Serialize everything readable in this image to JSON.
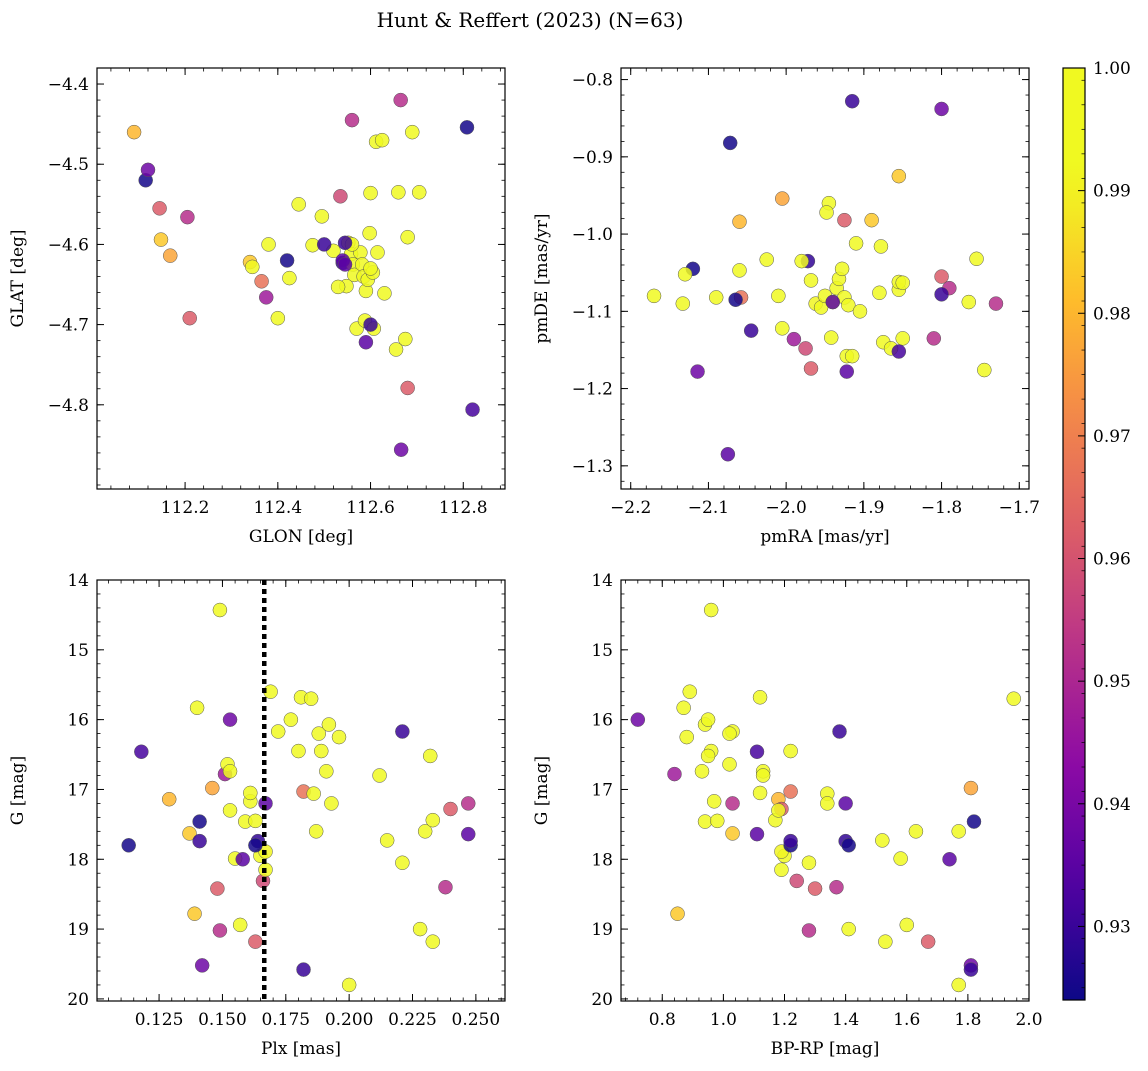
{
  "figure": {
    "title": "Hunt & Reffert (2023) (N=63)"
  },
  "colorbar": {
    "range": [
      0.924,
      1.0
    ],
    "ticks": [
      0.93,
      0.94,
      0.95,
      0.96,
      0.97,
      0.98,
      0.99,
      1.0
    ],
    "tick_labels": [
      "0.93",
      "0.94",
      "0.95",
      "0.96",
      "0.97",
      "0.98",
      "0.99",
      "1.00"
    ],
    "colormap": "plasma"
  },
  "stars": [
    {
      "glon": 112.09,
      "glat": -4.46,
      "pmra": -2.06,
      "pmde": -0.984,
      "plx": 0.129,
      "g": 17.14,
      "bprp": 1.18,
      "p": 0.98
    },
    {
      "glon": 112.115,
      "glat": -4.52,
      "pmra": -2.12,
      "pmde": -1.045,
      "plx": 0.141,
      "g": 17.46,
      "bprp": 1.82,
      "p": 0.925
    },
    {
      "glon": 112.12,
      "glat": -4.507,
      "pmra": -2.114,
      "pmde": -1.178,
      "plx": 0.142,
      "g": 19.52,
      "bprp": 1.81,
      "p": 0.938
    },
    {
      "glon": 112.145,
      "glat": -4.555,
      "pmra": -1.925,
      "pmde": -0.982,
      "plx": 0.148,
      "g": 18.42,
      "bprp": 1.3,
      "p": 0.962
    },
    {
      "glon": 112.148,
      "glat": -4.594,
      "pmra": -1.89,
      "pmde": -0.982,
      "plx": 0.137,
      "g": 17.63,
      "bprp": 1.03,
      "p": 0.983
    },
    {
      "glon": 112.168,
      "glat": -4.614,
      "pmra": -2.005,
      "pmde": -0.954,
      "plx": 0.146,
      "g": 16.98,
      "bprp": 1.81,
      "p": 0.977
    },
    {
      "glon": 112.205,
      "glat": -4.566,
      "pmra": -1.73,
      "pmde": -1.09,
      "plx": 0.149,
      "g": 19.02,
      "bprp": 1.28,
      "p": 0.952
    },
    {
      "glon": 112.21,
      "glat": -4.692,
      "pmra": -1.968,
      "pmde": -1.174,
      "plx": 0.163,
      "g": 19.18,
      "bprp": 1.67,
      "p": 0.962
    },
    {
      "glon": 112.34,
      "glat": -4.622,
      "pmra": -1.855,
      "pmde": -0.925,
      "plx": 0.139,
      "g": 18.78,
      "bprp": 0.85,
      "p": 0.983
    },
    {
      "glon": 112.345,
      "glat": -4.628,
      "pmra": -2.17,
      "pmde": -1.08,
      "plx": 0.149,
      "g": 14.43,
      "bprp": 0.96,
      "p": 1.0
    },
    {
      "glon": 112.365,
      "glat": -4.646,
      "pmra": -2.058,
      "pmde": -1.082,
      "plx": 0.182,
      "g": 17.03,
      "bprp": 1.22,
      "p": 0.967
    },
    {
      "glon": 112.375,
      "glat": -4.666,
      "pmra": -1.99,
      "pmde": -1.136,
      "plx": 0.151,
      "g": 16.78,
      "bprp": 0.84,
      "p": 0.947
    },
    {
      "glon": 112.38,
      "glat": -4.6,
      "pmra": -2.133,
      "pmde": -1.09,
      "plx": 0.152,
      "g": 16.64,
      "bprp": 1.02,
      "p": 0.997
    },
    {
      "glon": 112.4,
      "glat": -4.692,
      "pmra": -2.13,
      "pmde": -1.052,
      "plx": 0.153,
      "g": 16.74,
      "bprp": 0.93,
      "p": 0.994
    },
    {
      "glon": 112.425,
      "glat": -4.642,
      "pmra": -2.09,
      "pmde": -1.082,
      "plx": 0.155,
      "g": 17.99,
      "bprp": 1.58,
      "p": 0.995
    },
    {
      "glon": 112.445,
      "glat": -4.55,
      "pmra": -2.06,
      "pmde": -1.047,
      "plx": 0.157,
      "g": 18.94,
      "bprp": 1.6,
      "p": 0.996
    },
    {
      "glon": 112.475,
      "glat": -4.601,
      "pmra": -2.025,
      "pmde": -1.033,
      "plx": 0.159,
      "g": 17.46,
      "bprp": 0.94,
      "p": 1.0
    },
    {
      "glon": 112.495,
      "glat": -4.565,
      "pmra": -2.01,
      "pmde": -1.08,
      "plx": 0.161,
      "g": 17.17,
      "bprp": 0.97,
      "p": 1.0
    },
    {
      "glon": 112.52,
      "glat": -4.608,
      "pmra": -2.005,
      "pmde": -1.122,
      "plx": 0.163,
      "g": 17.45,
      "bprp": 0.98,
      "p": 0.998
    },
    {
      "glon": 112.535,
      "glat": -4.54,
      "pmra": -1.975,
      "pmde": -1.148,
      "plx": 0.166,
      "g": 18.31,
      "bprp": 1.24,
      "p": 0.958
    },
    {
      "glon": 112.54,
      "glat": -4.623,
      "pmra": -1.972,
      "pmde": -1.035,
      "plx": 0.164,
      "g": 17.74,
      "bprp": 1.4,
      "p": 0.929
    },
    {
      "glon": 112.548,
      "glat": -4.652,
      "pmra": -1.968,
      "pmde": -1.06,
      "plx": 0.165,
      "g": 17.95,
      "bprp": 1.2,
      "p": 1.0
    },
    {
      "glon": 112.552,
      "glat": -4.598,
      "pmra": -1.962,
      "pmde": -1.09,
      "plx": 0.167,
      "g": 17.89,
      "bprp": 1.19,
      "p": 0.99
    },
    {
      "glon": 112.558,
      "glat": -4.612,
      "pmra": -1.955,
      "pmde": -1.095,
      "plx": 0.167,
      "g": 18.15,
      "bprp": 1.19,
      "p": 0.997
    },
    {
      "glon": 112.562,
      "glat": -4.625,
      "pmra": -1.95,
      "pmde": -1.08,
      "plx": 0.169,
      "g": 15.6,
      "bprp": 0.89,
      "p": 1.0
    },
    {
      "glon": 112.565,
      "glat": -4.638,
      "pmra": -1.945,
      "pmde": -0.96,
      "plx": 0.172,
      "g": 16.17,
      "bprp": 1.03,
      "p": 1.0
    },
    {
      "glon": 112.57,
      "glat": -4.705,
      "pmra": -1.948,
      "pmde": -0.972,
      "plx": 0.18,
      "g": 16.45,
      "bprp": 1.22,
      "p": 0.992
    },
    {
      "glon": 112.578,
      "glat": -4.61,
      "pmra": -1.942,
      "pmde": -1.134,
      "plx": 0.181,
      "g": 15.68,
      "bprp": 1.12,
      "p": 0.998
    },
    {
      "glon": 112.582,
      "glat": -4.625,
      "pmra": -1.94,
      "pmde": -1.088,
      "plx": 0.185,
      "g": 15.7,
      "bprp": 1.95,
      "p": 1.0
    },
    {
      "glon": 112.585,
      "glat": -4.64,
      "pmra": -1.935,
      "pmde": -1.07,
      "plx": 0.186,
      "g": 17.06,
      "bprp": 1.34,
      "p": 0.997
    },
    {
      "glon": 112.588,
      "glat": -4.695,
      "pmra": -1.932,
      "pmde": -1.058,
      "plx": 0.187,
      "g": 17.6,
      "bprp": 1.63,
      "p": 0.997
    },
    {
      "glon": 112.59,
      "glat": -4.658,
      "pmra": -1.928,
      "pmde": -1.045,
      "plx": 0.188,
      "g": 16.2,
      "bprp": 1.02,
      "p": 1.0
    },
    {
      "glon": 112.594,
      "glat": -4.644,
      "pmra": -1.925,
      "pmde": -1.082,
      "plx": 0.189,
      "g": 16.45,
      "bprp": 0.96,
      "p": 0.999
    },
    {
      "glon": 112.598,
      "glat": -4.586,
      "pmra": -1.922,
      "pmde": -1.158,
      "plx": 0.191,
      "g": 16.74,
      "bprp": 1.13,
      "p": 0.998
    },
    {
      "glon": 112.6,
      "glat": -4.536,
      "pmra": -1.92,
      "pmde": -1.092,
      "plx": 0.192,
      "g": 16.07,
      "bprp": 0.94,
      "p": 1.0
    },
    {
      "glon": 112.605,
      "glat": -4.635,
      "pmra": -1.915,
      "pmde": -1.158,
      "plx": 0.193,
      "g": 17.2,
      "bprp": 1.34,
      "p": 0.997
    },
    {
      "glon": 112.607,
      "glat": -4.705,
      "pmra": -1.91,
      "pmde": -1.012,
      "plx": 0.196,
      "g": 16.25,
      "bprp": 0.88,
      "p": 1.0
    },
    {
      "glon": 112.612,
      "glat": -4.472,
      "pmra": -1.905,
      "pmde": -1.1,
      "plx": 0.2,
      "g": 19.8,
      "bprp": 1.77,
      "p": 0.999
    },
    {
      "glon": 112.615,
      "glat": -4.61,
      "pmra": -1.88,
      "pmde": -1.076,
      "plx": 0.212,
      "g": 16.8,
      "bprp": 1.13,
      "p": 1.0
    },
    {
      "glon": 112.625,
      "glat": -4.47,
      "pmra": -1.878,
      "pmde": -1.016,
      "plx": 0.215,
      "g": 17.73,
      "bprp": 1.52,
      "p": 1.0
    },
    {
      "glon": 112.63,
      "glat": -4.661,
      "pmra": -1.875,
      "pmde": -1.14,
      "plx": 0.221,
      "g": 18.05,
      "bprp": 1.28,
      "p": 0.999
    },
    {
      "glon": 112.655,
      "glat": -4.731,
      "pmra": -1.865,
      "pmde": -1.148,
      "plx": 0.228,
      "g": 19.0,
      "bprp": 1.41,
      "p": 0.998
    },
    {
      "glon": 112.66,
      "glat": -4.535,
      "pmra": -1.855,
      "pmde": -1.072,
      "plx": 0.23,
      "g": 17.6,
      "bprp": 1.77,
      "p": 1.0
    },
    {
      "glon": 112.675,
      "glat": -4.718,
      "pmra": -1.855,
      "pmde": -1.062,
      "plx": 0.232,
      "g": 16.52,
      "bprp": 0.95,
      "p": 1.0
    },
    {
      "glon": 112.68,
      "glat": -4.591,
      "pmra": -1.85,
      "pmde": -1.135,
      "plx": 0.233,
      "g": 17.44,
      "bprp": 1.17,
      "p": 0.995
    },
    {
      "glon": 112.705,
      "glat": -4.535,
      "pmra": -1.85,
      "pmde": -1.063,
      "plx": 0.233,
      "g": 19.18,
      "bprp": 1.53,
      "p": 1.0
    },
    {
      "glon": 112.665,
      "glat": -4.42,
      "pmra": -1.81,
      "pmde": -1.135,
      "plx": 0.238,
      "g": 18.4,
      "bprp": 1.37,
      "p": 0.952
    },
    {
      "glon": 112.68,
      "glat": -4.779,
      "pmra": -1.8,
      "pmde": -1.055,
      "plx": 0.24,
      "g": 17.28,
      "bprp": 1.19,
      "p": 0.962
    },
    {
      "glon": 112.56,
      "glat": -4.445,
      "pmra": -1.79,
      "pmde": -1.07,
      "plx": 0.247,
      "g": 17.2,
      "bprp": 1.03,
      "p": 0.952
    },
    {
      "glon": 112.53,
      "glat": -4.653,
      "pmra": -1.765,
      "pmde": -1.088,
      "plx": 0.153,
      "g": 17.3,
      "bprp": 1.18,
      "p": 1.0
    },
    {
      "glon": 112.56,
      "glat": -4.6,
      "pmra": -1.755,
      "pmde": -1.032,
      "plx": 0.161,
      "g": 17.05,
      "bprp": 1.12,
      "p": 1.0
    },
    {
      "glon": 112.6,
      "glat": -4.63,
      "pmra": -1.745,
      "pmde": -1.176,
      "plx": 0.177,
      "g": 16.0,
      "bprp": 0.95,
      "p": 1.0
    },
    {
      "glon": 112.69,
      "glat": -4.46,
      "pmra": -1.98,
      "pmde": -1.035,
      "plx": 0.14,
      "g": 15.83,
      "bprp": 0.87,
      "p": 1.0
    },
    {
      "glon": 112.808,
      "glat": -4.454,
      "pmra": -2.065,
      "pmde": -1.085,
      "plx": 0.113,
      "g": 17.8,
      "bprp": 1.22,
      "p": 0.925
    },
    {
      "glon": 112.82,
      "glat": -4.806,
      "pmra": -1.855,
      "pmde": -1.152,
      "plx": 0.118,
      "g": 16.46,
      "bprp": 1.11,
      "p": 0.932
    },
    {
      "glon": 112.666,
      "glat": -4.856,
      "pmra": -1.8,
      "pmde": -0.838,
      "plx": 0.153,
      "g": 16.0,
      "bprp": 0.72,
      "p": 0.938
    },
    {
      "glon": 112.59,
      "glat": -4.722,
      "pmra": -1.922,
      "pmde": -1.178,
      "plx": 0.167,
      "g": 17.2,
      "bprp": 1.4,
      "p": 0.935
    },
    {
      "glon": 112.545,
      "glat": -4.598,
      "pmra": -1.915,
      "pmde": -0.828,
      "plx": 0.182,
      "g": 19.58,
      "bprp": 1.81,
      "p": 0.93
    },
    {
      "glon": 112.54,
      "glat": -4.62,
      "pmra": -2.075,
      "pmde": -1.285,
      "plx": 0.158,
      "g": 18.0,
      "bprp": 1.74,
      "p": 0.935
    },
    {
      "glon": 112.5,
      "glat": -4.6,
      "pmra": -2.045,
      "pmde": -1.125,
      "plx": 0.221,
      "g": 16.17,
      "bprp": 1.38,
      "p": 0.93
    },
    {
      "glon": 112.545,
      "glat": -4.625,
      "pmra": -1.94,
      "pmde": -1.088,
      "plx": 0.247,
      "g": 17.64,
      "bprp": 1.11,
      "p": 0.935
    },
    {
      "glon": 112.42,
      "glat": -4.62,
      "pmra": -2.072,
      "pmde": -0.882,
      "plx": 0.163,
      "g": 17.8,
      "bprp": 1.41,
      "p": 0.925
    },
    {
      "glon": 112.6,
      "glat": -4.7,
      "pmra": -1.8,
      "pmde": -1.078,
      "plx": 0.141,
      "g": 17.74,
      "bprp": 1.22,
      "p": 0.93
    }
  ],
  "chart_data": [
    {
      "type": "scatter",
      "title": "",
      "xlabel": "GLON [deg]",
      "ylabel": "GLAT [deg]",
      "xfield": "glon",
      "yfield": "glat",
      "xlim": [
        112.01,
        112.89
      ],
      "ylim": [
        -4.905,
        -4.38
      ],
      "yinvert": false,
      "xticks": [
        112.2,
        112.4,
        112.6,
        112.8
      ],
      "xtick_labels": [
        "112.2",
        "112.4",
        "112.6",
        "112.8"
      ],
      "yticks": [
        -4.8,
        -4.7,
        -4.6,
        -4.5,
        -4.4
      ],
      "ytick_labels": [
        "−4.8",
        "−4.7",
        "−4.6",
        "−4.5",
        "−4.4"
      ],
      "vline": null
    },
    {
      "type": "scatter",
      "title": "",
      "xlabel": "pmRA [mas/yr]",
      "ylabel": "pmDE [mas/yr]",
      "xfield": "pmra",
      "yfield": "pmde",
      "xlim": [
        -2.2125,
        -1.6875
      ],
      "ylim": [
        -1.33,
        -0.785
      ],
      "yinvert": false,
      "xticks": [
        -2.2,
        -2.1,
        -2.0,
        -1.9,
        -1.8,
        -1.7
      ],
      "xtick_labels": [
        "−2.2",
        "−2.1",
        "−2.0",
        "−1.9",
        "−1.8",
        "−1.7"
      ],
      "yticks": [
        -1.3,
        -1.2,
        -1.1,
        -1.0,
        -0.9,
        -0.8
      ],
      "ytick_labels": [
        "−1.3",
        "−1.2",
        "−1.1",
        "−1.0",
        "−0.9",
        "−0.8"
      ],
      "vline": null
    },
    {
      "type": "scatter",
      "title": "",
      "xlabel": "Plx [mas]",
      "ylabel": "G [mag]",
      "xfield": "plx",
      "yfield": "g",
      "xlim": [
        0.1005,
        0.2615
      ],
      "ylim": [
        14.0,
        20.03
      ],
      "yinvert": true,
      "xticks": [
        0.125,
        0.15,
        0.175,
        0.2,
        0.225,
        0.25
      ],
      "xtick_labels": [
        "0.125",
        "0.150",
        "0.175",
        "0.200",
        "0.225",
        "0.250"
      ],
      "yticks": [
        14,
        15,
        16,
        17,
        18,
        19,
        20
      ],
      "ytick_labels": [
        "14",
        "15",
        "16",
        "17",
        "18",
        "19",
        "20"
      ],
      "vline": 0.1665
    },
    {
      "type": "scatter",
      "title": "",
      "xlabel": "BP-RP [mag]",
      "ylabel": "G [mag]",
      "xfield": "bprp",
      "yfield": "g",
      "xlim": [
        0.665,
        2.0
      ],
      "ylim": [
        14.0,
        20.03
      ],
      "yinvert": true,
      "xticks": [
        0.8,
        1.0,
        1.2,
        1.4,
        1.6,
        1.8,
        2.0
      ],
      "xtick_labels": [
        "0.8",
        "1.0",
        "1.2",
        "1.4",
        "1.6",
        "1.8",
        "2.0"
      ],
      "yticks": [
        14,
        15,
        16,
        17,
        18,
        19,
        20
      ],
      "ytick_labels": [
        "14",
        "15",
        "16",
        "17",
        "18",
        "19",
        "20"
      ],
      "vline": null
    }
  ]
}
